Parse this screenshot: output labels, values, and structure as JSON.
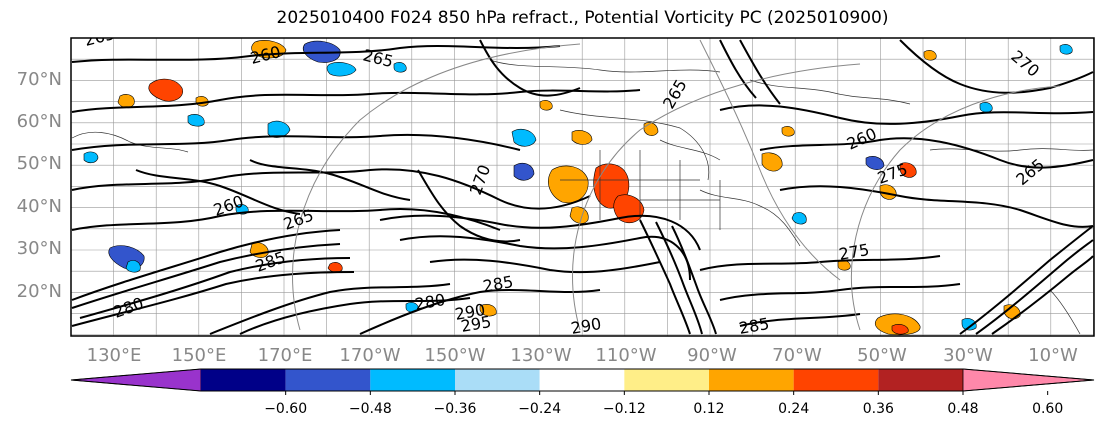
{
  "title": "2025010400 F024 850 hPa refract., Potential Vorticity PC (2025010900)",
  "lat_labels": [
    "70°N",
    "60°N",
    "50°N",
    "40°N",
    "30°N",
    "20°N"
  ],
  "lon_labels": [
    "130°E",
    "150°E",
    "170°E",
    "170°W",
    "150°W",
    "130°W",
    "110°W",
    "90°W",
    "70°W",
    "50°W",
    "30°W",
    "10°W"
  ],
  "contour_labels": [
    "265",
    "260",
    "265",
    "260",
    "265",
    "260",
    "270",
    "265",
    "275",
    "280",
    "285",
    "290",
    "295",
    "270",
    "265",
    "285",
    "285",
    "280",
    "275",
    "290"
  ],
  "colorbar": {
    "colors": [
      "#9933cc",
      "#000088",
      "#3355cc",
      "#00bbff",
      "#aaddf7",
      "#ffffff",
      "#ffee88",
      "#ffa500",
      "#ff4400",
      "#b22222",
      "#ff88aa"
    ],
    "ticks": [
      "−0.60",
      "−0.48",
      "−0.36",
      "−0.24",
      "−0.12",
      "0.12",
      "0.24",
      "0.36",
      "0.48",
      "0.60"
    ]
  },
  "colors": {
    "contour": "#000000",
    "coast": "#333333",
    "graticule": "#999999",
    "lat_label": "#888888",
    "lon_label": "#888888"
  }
}
